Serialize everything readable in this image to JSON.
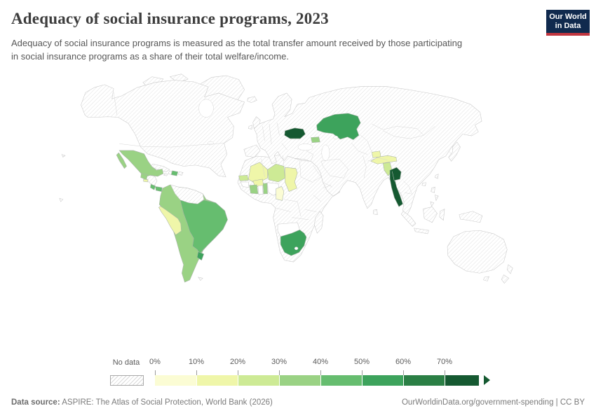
{
  "header": {
    "title": "Adequacy of social insurance programs, 2023",
    "subtitle_line1": "Adequacy of social insurance programs is measured as the total transfer amount received by those participating",
    "subtitle_line2": "in social insurance programs as a share of their total welfare/income.",
    "logo_line1": "Our World",
    "logo_line2": "in Data"
  },
  "legend": {
    "no_data_label": "No data",
    "tick_labels": [
      "0%",
      "10%",
      "20%",
      "30%",
      "40%",
      "50%",
      "60%",
      "70%"
    ],
    "buckets": [
      {
        "range": "0-10%",
        "color": "#fbfcd4"
      },
      {
        "range": "10-20%",
        "color": "#eff6a9"
      },
      {
        "range": "20-30%",
        "color": "#cdea95"
      },
      {
        "range": "30-40%",
        "color": "#9ad284"
      },
      {
        "range": "40-50%",
        "color": "#66bd6f"
      },
      {
        "range": "50-60%",
        "color": "#3da35c"
      },
      {
        "range": "60-70%",
        "color": "#2b7f45"
      },
      {
        "range": "70%+",
        "color": "#155931"
      }
    ]
  },
  "footer": {
    "source_label": "Data source:",
    "source_text": " ASPIRE: The Atlas of Social Protection, World Bank (2026)",
    "credit": "OurWorldinData.org/government-spending | CC BY"
  },
  "colors": {
    "logo_navy": "#102a4e",
    "logo_red": "#c0353f",
    "title_text": "#3d3d3d",
    "subtitle_text": "#575757",
    "legend_text": "#5b5b5b",
    "footer_text": "#7b7b7b",
    "country_border": "#c9c9c9",
    "hatch_line": "#dcdcdc"
  },
  "map_regions": {
    "mexico": {
      "label": "Mexico",
      "bucket": 3
    },
    "guatemala": {
      "label": "Guatemala",
      "bucket": 3
    },
    "el_salvador": {
      "label": "El Salvador",
      "bucket": 1
    },
    "costa_rica": {
      "label": "Costa Rica",
      "bucket": 4
    },
    "panama": {
      "label": "Panama",
      "bucket": 4
    },
    "dominican_republic": {
      "label": "Dominican Republic",
      "bucket": 4
    },
    "south_america_group": {
      "label": "Argentina, Chile, Bolivia, Paraguay, Colombia, Ecuador",
      "bucket": 3
    },
    "peru": {
      "label": "Peru",
      "bucket": 1
    },
    "brazil": {
      "label": "Brazil",
      "bucket": 4
    },
    "uruguay": {
      "label": "Uruguay",
      "bucket": 5
    },
    "senegal": {
      "label": "Senegal",
      "bucket": 2
    },
    "mali": {
      "label": "Mali",
      "bucket": 1
    },
    "burkina_faso": {
      "label": "Burkina Faso",
      "bucket": 1
    },
    "cote_divoire": {
      "label": "Cote d'Ivoire",
      "bucket": 3
    },
    "ghana": {
      "label": "Ghana",
      "fill": "white"
    },
    "togo_benin": {
      "label": "Togo and Benin",
      "bucket": 3
    },
    "niger": {
      "label": "Niger",
      "bucket": 2
    },
    "nigeria": {
      "label": "Nigeria",
      "fill": "white"
    },
    "chad": {
      "label": "Chad",
      "bucket": 1
    },
    "cameroon": {
      "label": "Cameroon",
      "bucket": 0
    },
    "guinea": {
      "label": "Guinea",
      "fill": "white"
    },
    "namibia_botswana": {
      "label": "Namibia and Botswana",
      "fill": "white"
    },
    "south_africa": {
      "label": "South Africa",
      "bucket": 5
    },
    "romania": {
      "label": "Romania",
      "bucket": 7
    },
    "armenia": {
      "label": "Armenia",
      "bucket": 3
    },
    "kazakhstan": {
      "label": "Kazakhstan",
      "bucket": 5
    },
    "tajikistan": {
      "label": "Tajikistan",
      "bucket": 1
    },
    "nepal": {
      "label": "Nepal",
      "bucket": 1
    },
    "bangladesh": {
      "label": "Bangladesh",
      "bucket": 2
    },
    "thailand": {
      "label": "Thailand",
      "bucket": 7
    }
  }
}
